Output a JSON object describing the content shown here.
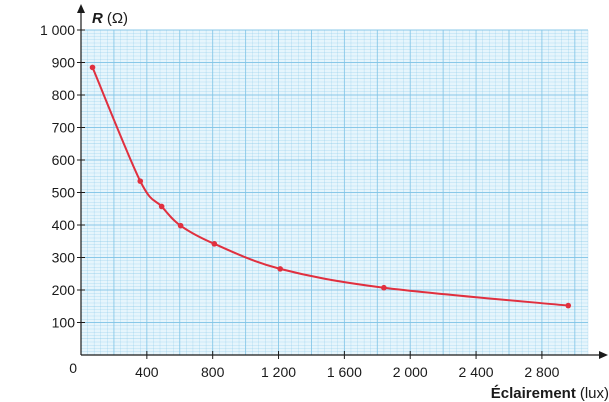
{
  "chart_data": {
    "type": "line",
    "xlabel_main": "Éclairement",
    "xlabel_unit": "(lux)",
    "ylabel_symbol": "R",
    "ylabel_unit": "(Ω)",
    "origin_label": "0",
    "x_ticks": [
      400,
      800,
      1200,
      1600,
      2000,
      2400,
      2800
    ],
    "x_tick_labels": [
      "400",
      "800",
      "1 200",
      "1 600",
      "2 000",
      "2 400",
      "2 800"
    ],
    "y_ticks": [
      100,
      200,
      300,
      400,
      500,
      600,
      700,
      800,
      900,
      1000
    ],
    "y_tick_labels": [
      "100",
      "200",
      "300",
      "400",
      "500",
      "600",
      "700",
      "800",
      "900",
      "1 000"
    ],
    "xlim": [
      0,
      3080
    ],
    "ylim": [
      0,
      1000
    ],
    "grid": true,
    "colors": {
      "curve": "#e0303f",
      "grid": "#7fc4e6",
      "grid_bg": "#e6f5fc",
      "axis": "#1a1a1a"
    },
    "series": [
      {
        "x": [
          70,
          360,
          490,
          605,
          810,
          1210,
          1840,
          2960
        ],
        "y": [
          885,
          535,
          457,
          398,
          342,
          265,
          207,
          152
        ]
      }
    ]
  }
}
